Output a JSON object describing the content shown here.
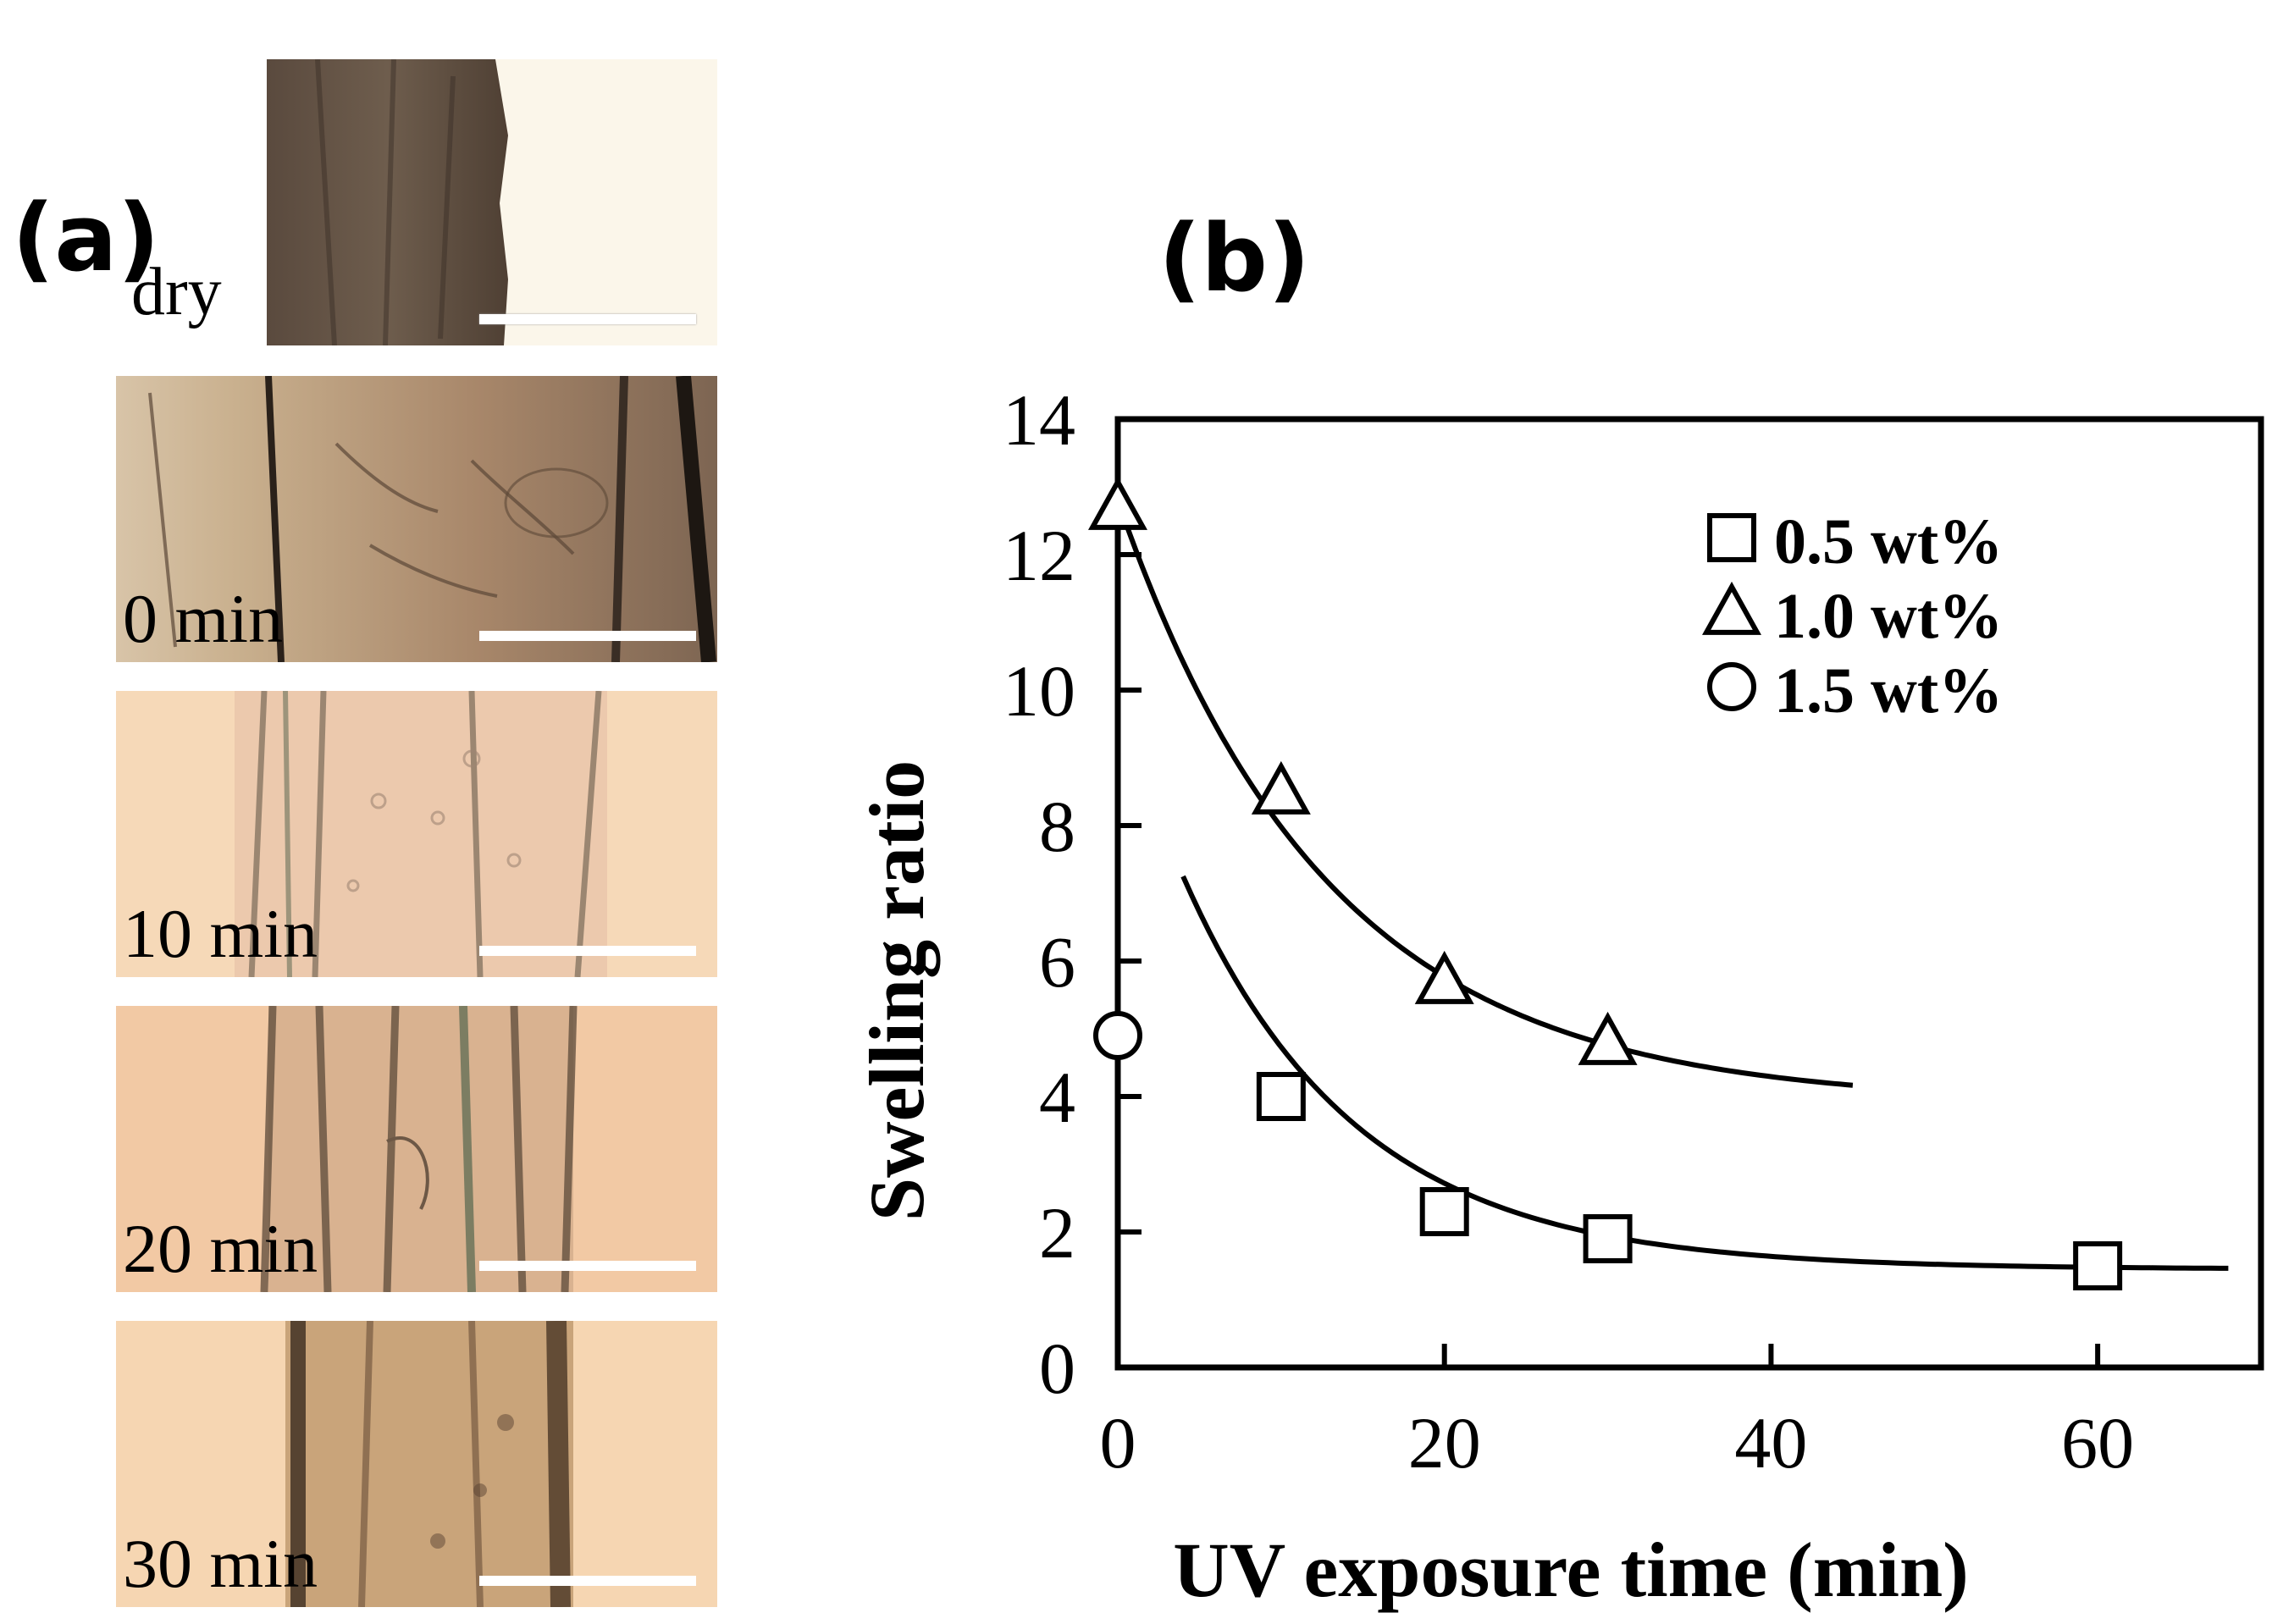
{
  "panel_a": {
    "label": "(a)",
    "tiles": [
      {
        "label": "dry"
      },
      {
        "label": "0 min"
      },
      {
        "label": "10 min"
      },
      {
        "label": "20 min"
      },
      {
        "label": "30 min"
      }
    ]
  },
  "panel_b": {
    "label": "(b)"
  },
  "chart_data": {
    "type": "scatter",
    "xlabel": "UV exposure time (min)",
    "ylabel": "Swelling ratio",
    "xlim": [
      0,
      70
    ],
    "ylim": [
      0,
      14
    ],
    "xticks": [
      0,
      20,
      40,
      60
    ],
    "yticks": [
      0,
      2,
      4,
      6,
      8,
      10,
      12,
      14
    ],
    "legend_position": "top-right",
    "series": [
      {
        "name": "0.5 wt%",
        "marker": "square",
        "x": [
          10,
          20,
          30,
          60
        ],
        "y": [
          4.0,
          2.3,
          1.9,
          1.5
        ]
      },
      {
        "name": "1.0 wt%",
        "marker": "triangle",
        "x": [
          0,
          10,
          20,
          30
        ],
        "y": [
          12.7,
          8.5,
          5.7,
          4.8
        ]
      },
      {
        "name": "1.5 wt%",
        "marker": "circle",
        "x": [
          0
        ],
        "y": [
          4.9
        ]
      }
    ],
    "fits": [
      {
        "series": "0.5 wt%",
        "x_range": [
          4,
          68
        ],
        "asymptote": 1.45,
        "amplitude": 5.8,
        "rate": 0.095,
        "x0": 4
      },
      {
        "series": "1.0 wt%",
        "x_range": [
          0,
          45
        ],
        "asymptote": 3.9,
        "amplitude": 8.9,
        "rate": 0.078,
        "x0": 0
      }
    ]
  }
}
